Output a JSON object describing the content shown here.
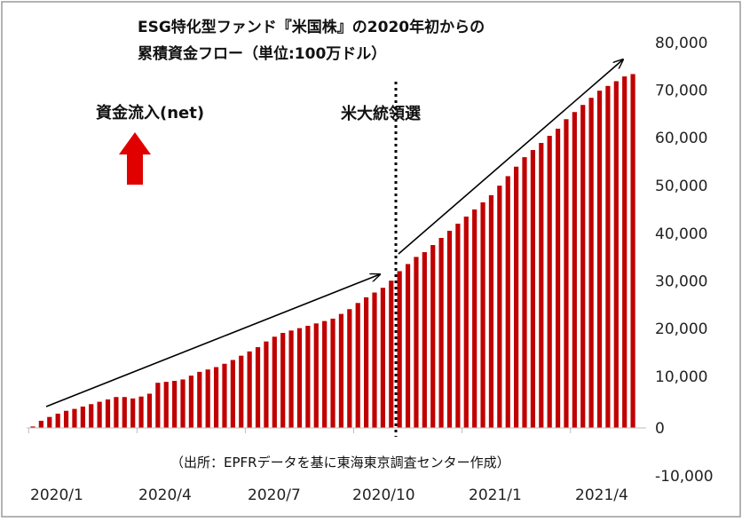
{
  "chart_data": {
    "type": "bar",
    "title_line1": "ESG特化型ファンド『米国株』の2020年初からの",
    "title_line2": "累積資金フロー（単位:100万ドル）",
    "inflow_label": "資金流入(net)",
    "event_label": "米大統領選",
    "source": "（出所：EPFRデータを基に東海東京調査センター作成）",
    "x_tick_labels": [
      "2020/1",
      "2020/4",
      "2020/7",
      "2020/10",
      "2021/1",
      "2021/4"
    ],
    "y_tick_labels": [
      "80,000",
      "70,000",
      "60,000",
      "50,000",
      "40,000",
      "30,000",
      "20,000",
      "10,000",
      "0",
      "-10,000"
    ],
    "ylim": [
      -10000,
      80000
    ],
    "y_ticks": [
      80000,
      70000,
      60000,
      50000,
      40000,
      30000,
      20000,
      10000,
      0,
      -10000
    ],
    "x_tick_week_index": [
      0,
      13,
      26,
      39,
      52,
      65
    ],
    "event_week_index": 43,
    "bar_color": "#c00000",
    "arrow_color": "#e00000",
    "values": [
      300,
      1500,
      2300,
      3000,
      3600,
      4000,
      4500,
      5000,
      5500,
      6000,
      6500,
      6500,
      6200,
      6600,
      7200,
      9500,
      9700,
      9900,
      10200,
      11000,
      11800,
      12300,
      12800,
      13500,
      14300,
      15200,
      16100,
      17000,
      18200,
      19200,
      20000,
      20500,
      21000,
      21500,
      22000,
      22500,
      23000,
      24000,
      25000,
      26300,
      27500,
      28500,
      29500,
      31000,
      33000,
      34500,
      36000,
      37000,
      38500,
      40000,
      41500,
      43000,
      44500,
      46000,
      47500,
      49000,
      51000,
      53000,
      55000,
      57000,
      58500,
      60000,
      61500,
      63000,
      65000,
      66500,
      68000,
      69500,
      71000,
      72000,
      73000,
      74000,
      74500
    ]
  }
}
